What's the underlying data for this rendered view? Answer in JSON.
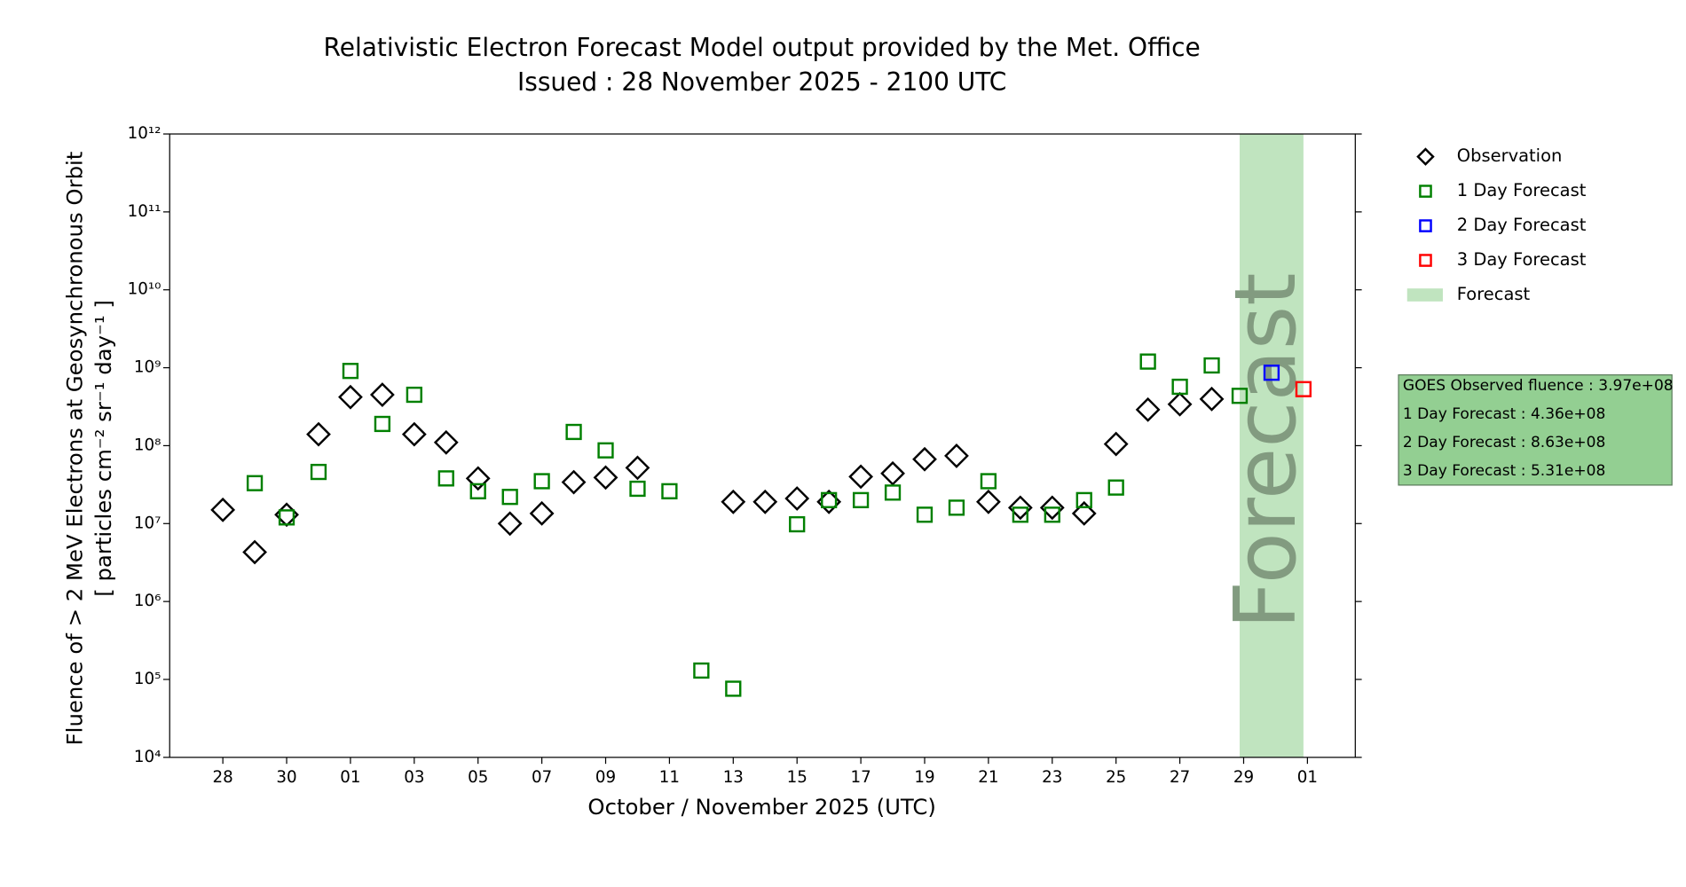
{
  "chart_data": {
    "type": "scatter",
    "title": "Relativistic Electron Forecast Model output provided by the Met. Office",
    "subtitle": "Issued : 28 November 2025 - 2100 UTC",
    "x_label": "October / November 2025 (UTC)",
    "y_label": "Fluence of > 2 MeV Electrons at Geosynchronous Orbit",
    "y_label_units": "[ particles cm⁻² sr⁻¹ day⁻¹ ]",
    "y_scale": "log",
    "xlim": [
      "2025-10-26T08:00",
      "2025-12-02T12:00"
    ],
    "ylim": [
      10000,
      1000000000000
    ],
    "xticks": [
      {
        "value": "2025-10-28",
        "label": "28"
      },
      {
        "value": "2025-10-30",
        "label": "30"
      },
      {
        "value": "2025-11-01",
        "label": "01"
      },
      {
        "value": "2025-11-03",
        "label": "03"
      },
      {
        "value": "2025-11-05",
        "label": "05"
      },
      {
        "value": "2025-11-07",
        "label": "07"
      },
      {
        "value": "2025-11-09",
        "label": "09"
      },
      {
        "value": "2025-11-11",
        "label": "11"
      },
      {
        "value": "2025-11-13",
        "label": "13"
      },
      {
        "value": "2025-11-15",
        "label": "15"
      },
      {
        "value": "2025-11-17",
        "label": "17"
      },
      {
        "value": "2025-11-19",
        "label": "19"
      },
      {
        "value": "2025-11-21",
        "label": "21"
      },
      {
        "value": "2025-11-23",
        "label": "23"
      },
      {
        "value": "2025-11-25",
        "label": "25"
      },
      {
        "value": "2025-11-27",
        "label": "27"
      },
      {
        "value": "2025-11-29",
        "label": "29"
      },
      {
        "value": "2025-12-01",
        "label": "01"
      }
    ],
    "yticks": [
      {
        "value": 10000,
        "label": "10⁴"
      },
      {
        "value": 100000,
        "label": "10⁵"
      },
      {
        "value": 1000000,
        "label": "10⁶"
      },
      {
        "value": 10000000,
        "label": "10⁷"
      },
      {
        "value": 100000000,
        "label": "10⁸"
      },
      {
        "value": 1000000000,
        "label": "10⁹"
      },
      {
        "value": 10000000000,
        "label": "10¹⁰"
      },
      {
        "value": 100000000000,
        "label": "10¹¹"
      },
      {
        "value": 1000000000000,
        "label": "10¹²"
      }
    ],
    "forecast_region": {
      "name": "Forecast",
      "label": "Forecast",
      "start": "2025-11-28T21:00",
      "end": "2025-11-30T21:00",
      "color": "#c0e4bf"
    },
    "series": [
      {
        "name": "Observation",
        "marker": "diamond",
        "color": "#000000",
        "x": [
          "2025-10-28",
          "2025-10-29",
          "2025-10-30",
          "2025-10-31",
          "2025-11-01",
          "2025-11-02",
          "2025-11-03",
          "2025-11-04",
          "2025-11-05",
          "2025-11-06",
          "2025-11-07",
          "2025-11-08",
          "2025-11-09",
          "2025-11-10",
          "2025-11-13",
          "2025-11-14",
          "2025-11-15",
          "2025-11-16",
          "2025-11-17",
          "2025-11-18",
          "2025-11-19",
          "2025-11-20",
          "2025-11-21",
          "2025-11-22",
          "2025-11-23",
          "2025-11-24",
          "2025-11-25",
          "2025-11-26",
          "2025-11-27",
          "2025-11-28"
        ],
        "values": [
          15000000,
          4300000,
          13000000,
          140000000,
          420000000,
          450000000,
          140000000,
          110000000,
          38000000,
          10000000,
          13500000,
          34000000,
          39000000,
          52000000,
          19000000,
          19000000,
          21000000,
          19000000,
          40000000,
          44000000,
          67000000,
          74000000,
          19000000,
          16000000,
          16000000,
          13500000,
          105000000,
          290000000,
          340000000,
          397000000
        ]
      },
      {
        "name": "1 Day Forecast",
        "marker": "square",
        "color": "#008000",
        "x": [
          "2025-10-29",
          "2025-10-30",
          "2025-10-31",
          "2025-11-01",
          "2025-11-02",
          "2025-11-03",
          "2025-11-04",
          "2025-11-05",
          "2025-11-06",
          "2025-11-07",
          "2025-11-08",
          "2025-11-09",
          "2025-11-10",
          "2025-11-11",
          "2025-11-12",
          "2025-11-13",
          "2025-11-15",
          "2025-11-16",
          "2025-11-17",
          "2025-11-18",
          "2025-11-19",
          "2025-11-20",
          "2025-11-21",
          "2025-11-22",
          "2025-11-23",
          "2025-11-24",
          "2025-11-25",
          "2025-11-26",
          "2025-11-27",
          "2025-11-28",
          "2025-11-28T21:00"
        ],
        "values": [
          33000000,
          12000000,
          46000000,
          910000000,
          190000000,
          450000000,
          38000000,
          26000000,
          22000000,
          35000000,
          150000000,
          87000000,
          28000000,
          26000000,
          130000,
          76000,
          9800000,
          20000000,
          20000000,
          25000000,
          13000000,
          16000000,
          35000000,
          13000000,
          13000000,
          20000000,
          29000000,
          1200000000,
          570000000,
          1070000000,
          436000000
        ]
      },
      {
        "name": "2 Day Forecast",
        "marker": "square",
        "color": "#0000ff",
        "x": [
          "2025-11-29T21:00"
        ],
        "values": [
          863000000
        ]
      },
      {
        "name": "3 Day Forecast",
        "marker": "square",
        "color": "#ff0000",
        "x": [
          "2025-11-30T21:00"
        ],
        "values": [
          531000000
        ]
      }
    ],
    "info_box": [
      "GOES Observed fluence : 3.97e+08",
      "1 Day Forecast : 4.36e+08",
      "2 Day Forecast : 8.63e+08",
      "3 Day Forecast : 5.31e+08"
    ],
    "info_box_color": "#93cf92"
  }
}
